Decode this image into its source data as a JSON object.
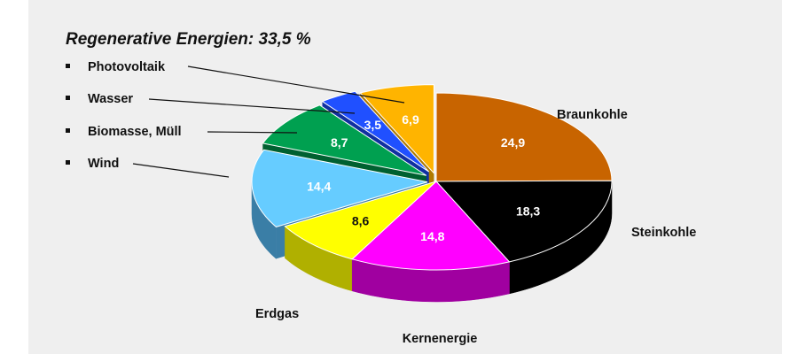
{
  "chart_data": {
    "type": "pie",
    "title": "Regenerative Energien:  33,5 %",
    "slices": [
      {
        "label": "Braunkohle",
        "value": 24.9,
        "value_label": "24,9",
        "color": "#c86400",
        "side": "#8a4500",
        "text_color": "#ffffff"
      },
      {
        "label": "Steinkohle",
        "value": 18.3,
        "value_label": "18,3",
        "color": "#000000",
        "side": "#000000",
        "text_color": "#ffffff"
      },
      {
        "label": "Kernenergie",
        "value": 14.8,
        "value_label": "14,8",
        "color": "#ff00ff",
        "side": "#a000a0",
        "text_color": "#ffffff"
      },
      {
        "label": "Erdgas",
        "value": 8.6,
        "value_label": "8,6",
        "color": "#ffff00",
        "side": "#b0b000",
        "text_color": "#111111"
      },
      {
        "label": "Wind",
        "value": 14.4,
        "value_label": "14,4",
        "color": "#66ccff",
        "side": "#3a7ea6",
        "text_color": "#ffffff"
      },
      {
        "label": "Biomasse, Müll",
        "value": 8.7,
        "value_label": "8,7",
        "color": "#00a050",
        "side": "#006030",
        "text_color": "#ffffff"
      },
      {
        "label": "Wasser",
        "value": 3.5,
        "value_label": "3,5",
        "color": "#2050ff",
        "side": "#1030a0",
        "text_color": "#ffffff"
      },
      {
        "label": "Photovoltaik",
        "value": 6.9,
        "value_label": "6,9",
        "color": "#ffb400",
        "side": "#b07a00",
        "text_color": "#ffffff"
      }
    ],
    "legend_labels": [
      "Photovoltaik",
      "Wasser",
      "Biomasse, Müll",
      "Wind"
    ]
  },
  "colors": {
    "background_panel": "#efefef",
    "leader_line": "#111111"
  }
}
